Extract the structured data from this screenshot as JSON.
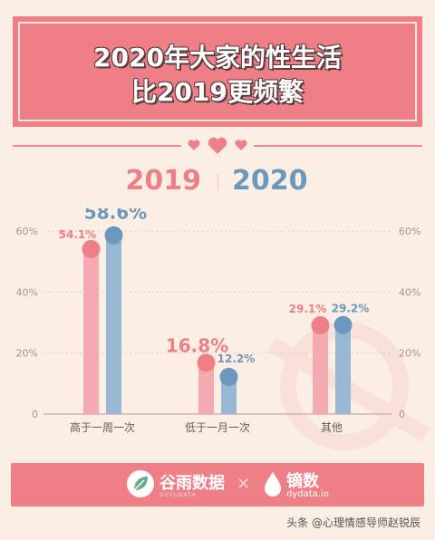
{
  "title": {
    "line1": "2020年大家的性生活",
    "line2": "比2019更频繁"
  },
  "legend": {
    "year_a": "2019",
    "year_b": "2020"
  },
  "colors": {
    "year_2019": "#ef7f86",
    "year_2020": "#6b98bd",
    "header_bg": "#ef7f86",
    "page_bg": "#fbeee4"
  },
  "chart_data": {
    "type": "bar",
    "categories": [
      "高于一周一次",
      "低于一月一次",
      "其他"
    ],
    "series": [
      {
        "name": "2019",
        "values": [
          54.1,
          16.8,
          29.1
        ],
        "labels": [
          "54.1%",
          "16.8%",
          "29.1%"
        ]
      },
      {
        "name": "2020",
        "values": [
          58.6,
          12.2,
          29.2
        ],
        "labels": [
          "58.6%",
          "12.2%",
          "29.2%"
        ]
      }
    ],
    "ylim": [
      0,
      60
    ],
    "yticks": [
      "0",
      "20%",
      "40%",
      "60%"
    ],
    "ytick_values": [
      0,
      20,
      40,
      60
    ],
    "grid": true
  },
  "footer": {
    "brand1_name": "谷雨数据",
    "brand1_sub": "GUYUDATA",
    "separator": "×",
    "brand2_name": "镝数",
    "brand2_sub": "dydata.io"
  },
  "watermark": "头条 @心理情感导师赵锐辰"
}
